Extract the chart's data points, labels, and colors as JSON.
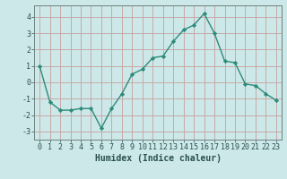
{
  "x": [
    0,
    1,
    2,
    3,
    4,
    5,
    6,
    7,
    8,
    9,
    10,
    11,
    12,
    13,
    14,
    15,
    16,
    17,
    18,
    19,
    20,
    21,
    22,
    23
  ],
  "y": [
    1.0,
    -1.2,
    -1.7,
    -1.7,
    -1.6,
    -1.6,
    -2.8,
    -1.6,
    -0.7,
    0.5,
    0.8,
    1.5,
    1.6,
    2.5,
    3.2,
    3.5,
    4.2,
    3.0,
    1.3,
    1.2,
    -0.1,
    -0.2,
    -0.7,
    -1.1
  ],
  "line_color": "#2e8b7a",
  "marker": "D",
  "marker_size": 2.2,
  "line_width": 1.0,
  "xlabel": "Humidex (Indice chaleur)",
  "xlabel_fontsize": 7,
  "bg_color": "#cce8e8",
  "grid_color": "#c8a0a0",
  "ylim": [
    -3.5,
    4.7
  ],
  "yticks": [
    -3,
    -2,
    -1,
    0,
    1,
    2,
    3,
    4
  ],
  "xticks": [
    0,
    1,
    2,
    3,
    4,
    5,
    6,
    7,
    8,
    9,
    10,
    11,
    12,
    13,
    14,
    15,
    16,
    17,
    18,
    19,
    20,
    21,
    22,
    23
  ],
  "tick_fontsize": 6.0,
  "text_color": "#2a5050"
}
